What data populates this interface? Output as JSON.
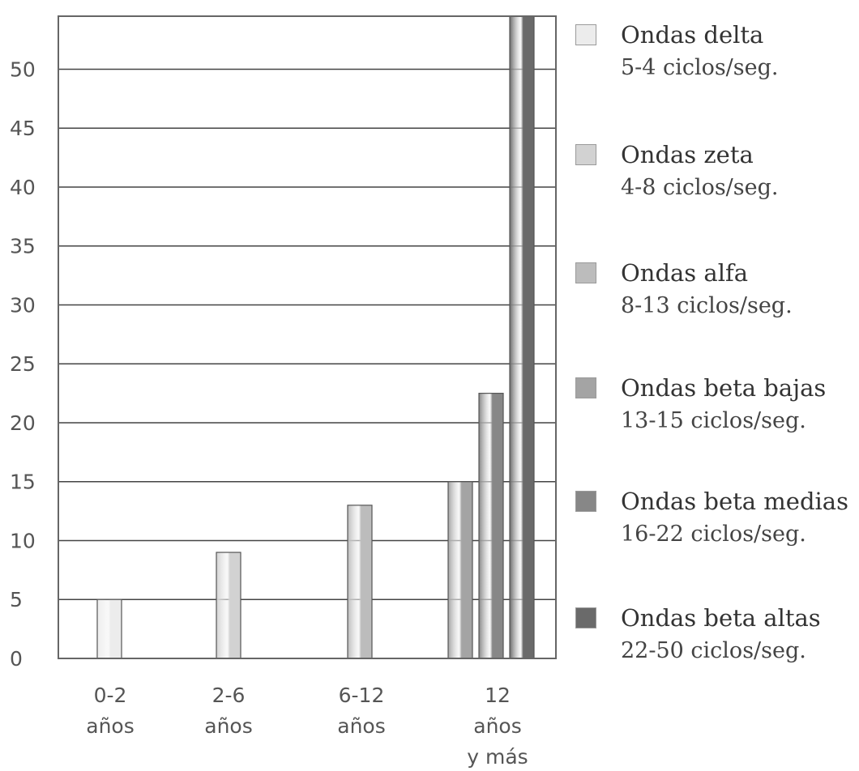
{
  "chart_data": {
    "type": "bar",
    "title": "",
    "xlabel": "",
    "ylabel": "",
    "ylim": [
      0,
      54.5
    ],
    "yticks": [
      0,
      5,
      10,
      15,
      20,
      25,
      30,
      35,
      40,
      45,
      50
    ],
    "grid": true,
    "legend_position": "right",
    "categories": [
      {
        "lines": [
          "0-2",
          "años"
        ]
      },
      {
        "lines": [
          "2-6",
          "años"
        ]
      },
      {
        "lines": [
          "6-12",
          "años"
        ]
      },
      {
        "lines": [
          "12",
          "años",
          "y más"
        ]
      }
    ],
    "series": [
      {
        "name": "Ondas delta",
        "range": "5-4 ciclos/seg.",
        "color": "#ececec",
        "values": [
          5,
          null,
          null,
          null
        ]
      },
      {
        "name": "Ondas zeta",
        "range": "4-8 ciclos/seg.",
        "color": "#d2d2d2",
        "values": [
          null,
          9,
          null,
          null
        ]
      },
      {
        "name": "Ondas alfa",
        "range": "8-13 ciclos/seg.",
        "color": "#bcbcbc",
        "values": [
          null,
          null,
          13,
          null
        ]
      },
      {
        "name": "Ondas beta bajas",
        "range": "13-15 ciclos/seg.",
        "color": "#a4a4a4",
        "values": [
          null,
          null,
          null,
          15
        ]
      },
      {
        "name": "Ondas beta medias",
        "range": "16-22 ciclos/seg.",
        "color": "#878787",
        "values": [
          null,
          null,
          null,
          22.5
        ]
      },
      {
        "name": "Ondas beta altas",
        "range": "22-50 ciclos/seg.",
        "color": "#6a6a6a",
        "values": [
          null,
          null,
          null,
          54.5
        ]
      }
    ]
  }
}
